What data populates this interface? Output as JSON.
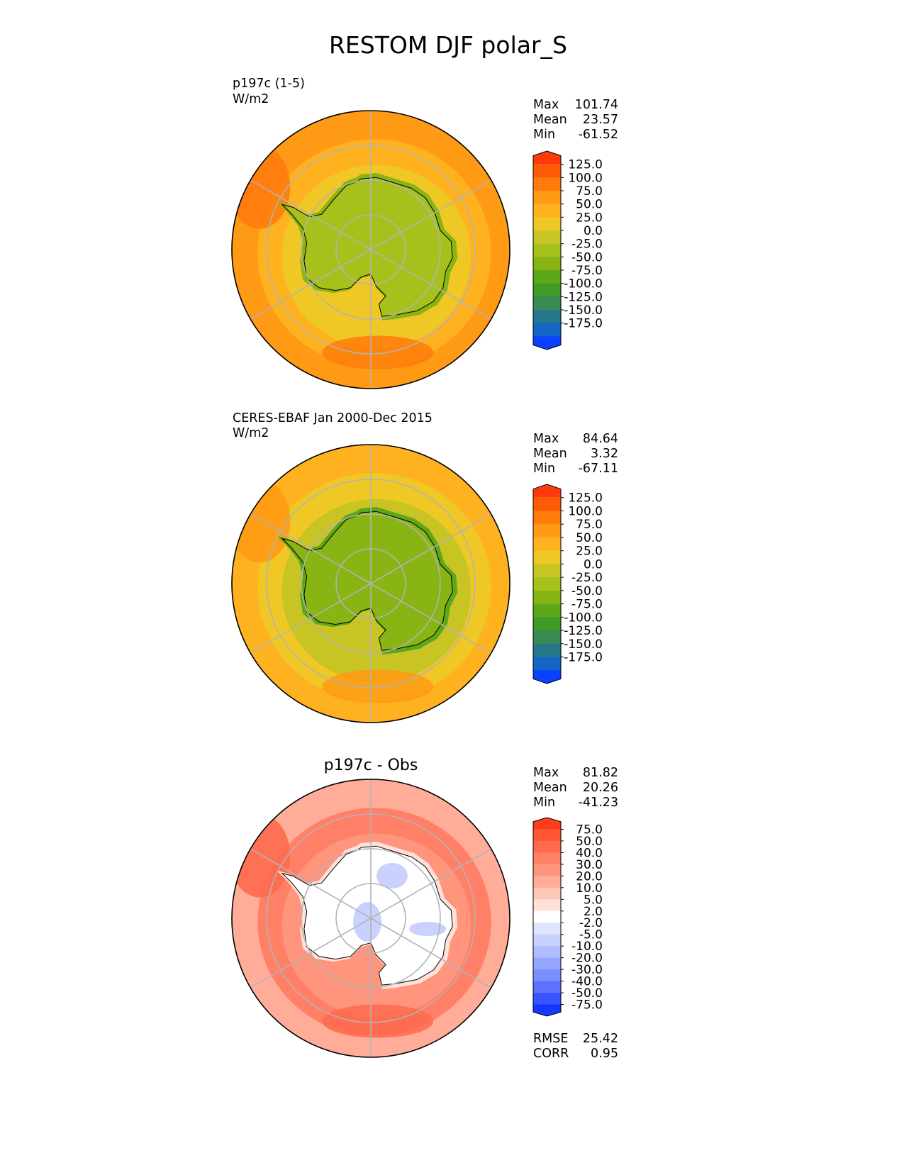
{
  "title": "RESTOM DJF polar_S",
  "chart_data": [
    {
      "type": "heatmap",
      "projection": "south-polar-stereographic",
      "title": "p197c (1-5)",
      "units": "W/m2",
      "stats": {
        "max": {
          "label": "Max",
          "value": "101.74"
        },
        "mean": {
          "label": "Mean",
          "value": "23.57"
        },
        "min": {
          "label": "Min",
          "value": "-61.52"
        }
      },
      "colorbar": {
        "ticks": [
          "125.0",
          "100.0",
          "75.0",
          "50.0",
          "25.0",
          "0.0",
          "-25.0",
          "-50.0",
          "-75.0",
          "-100.0",
          "-125.0",
          "-150.0",
          "-175.0"
        ],
        "colors": [
          "#ff3a0a",
          "#ff5a06",
          "#ff7b0c",
          "#ff9a14",
          "#ffb21f",
          "#f0c826",
          "#c8c423",
          "#a6c11b",
          "#88b414",
          "#5ca71a",
          "#3f9a26",
          "#3a8a56",
          "#24788a",
          "#1466c4",
          "#0a40ff"
        ],
        "extend": "both"
      },
      "field": {
        "ocean_outer": "#ff9a14",
        "ocean_ring": "#ffb21f",
        "ocean_inner": "#f0c826",
        "land": "#a6c11b",
        "coast_land": "#88b414",
        "hot_patch": "#ff7b0c"
      }
    },
    {
      "type": "heatmap",
      "projection": "south-polar-stereographic",
      "title": "CERES-EBAF Jan 2000-Dec 2015",
      "units": "W/m2",
      "stats": {
        "max": {
          "label": "Max",
          "value": "84.64"
        },
        "mean": {
          "label": "Mean",
          "value": "3.32"
        },
        "min": {
          "label": "Min",
          "value": "-67.11"
        }
      },
      "colorbar": {
        "ticks": [
          "125.0",
          "100.0",
          "75.0",
          "50.0",
          "25.0",
          "0.0",
          "-25.0",
          "-50.0",
          "-75.0",
          "-100.0",
          "-125.0",
          "-150.0",
          "-175.0"
        ],
        "colors": [
          "#ff3a0a",
          "#ff5a06",
          "#ff7b0c",
          "#ff9a14",
          "#ffb21f",
          "#f0c826",
          "#c8c423",
          "#a6c11b",
          "#88b414",
          "#5ca71a",
          "#3f9a26",
          "#3a8a56",
          "#24788a",
          "#1466c4",
          "#0a40ff"
        ],
        "extend": "both"
      },
      "field": {
        "ocean_outer": "#ffb21f",
        "ocean_ring": "#f0c826",
        "ocean_inner": "#c8c423",
        "land": "#88b414",
        "coast_land": "#5ca71a",
        "hot_patch": "#ff9a14"
      }
    },
    {
      "type": "heatmap",
      "projection": "south-polar-stereographic",
      "title": "p197c - Obs",
      "units": "",
      "stats": {
        "max": {
          "label": "Max",
          "value": "81.82"
        },
        "mean": {
          "label": "Mean",
          "value": "20.26"
        },
        "min": {
          "label": "Min",
          "value": "-41.23"
        }
      },
      "metrics": {
        "rmse": {
          "label": "RMSE",
          "value": "25.42"
        },
        "corr": {
          "label": "CORR",
          "value": "0.95"
        }
      },
      "colorbar": {
        "ticks": [
          "75.0",
          "50.0",
          "40.0",
          "30.0",
          "20.0",
          "10.0",
          "5.0",
          "2.0",
          "-2.0",
          "-5.0",
          "-10.0",
          "-20.0",
          "-30.0",
          "-40.0",
          "-50.0",
          "-75.0"
        ],
        "colors": [
          "#ff3d1a",
          "#ff5537",
          "#ff6a4e",
          "#ff8066",
          "#ff957d",
          "#ffad99",
          "#ffc7b8",
          "#ffe1d9",
          "#ffffff",
          "#e0e6ff",
          "#c9d2ff",
          "#b0bdff",
          "#96a6ff",
          "#7b8fff",
          "#5c72ff",
          "#3a55ff",
          "#1438ff"
        ],
        "extend": "both"
      },
      "field": {
        "ocean_outer": "#ffad99",
        "ocean_ring": "#ff8066",
        "ocean_inner": "#ff957d",
        "land": "#ffffff",
        "coast_land": "#ffe1d9",
        "hot_patch": "#ff6a4e",
        "cold_patch": "#c9d2ff"
      }
    }
  ]
}
